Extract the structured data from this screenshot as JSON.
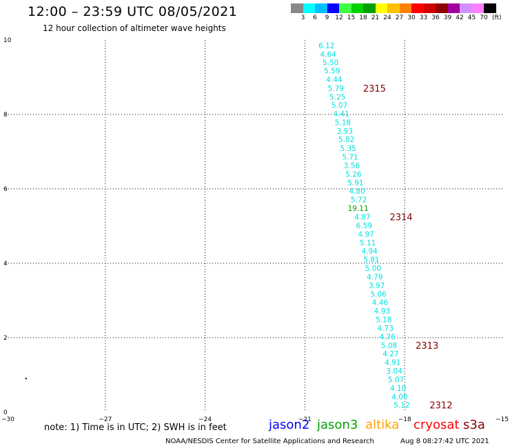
{
  "header": {
    "title": "12:00 – 23:59 UTC 08/05/2021",
    "subtitle": "12 hour collection of altimeter wave heights"
  },
  "color_scale": {
    "colors": [
      "#888888",
      "#00ffff",
      "#00bfff",
      "#0000ff",
      "#40ff40",
      "#00d000",
      "#00a000",
      "#ffff00",
      "#ffc000",
      "#ff8000",
      "#ff0000",
      "#d00000",
      "#900000",
      "#a000a0",
      "#d090ff",
      "#ff80ff",
      "#000000"
    ],
    "labels": [
      "3",
      "6",
      "9",
      "12",
      "15",
      "18",
      "21",
      "24",
      "27",
      "30",
      "33",
      "36",
      "39",
      "42",
      "45",
      "70"
    ],
    "unit": "(ft)"
  },
  "map": {
    "x_axis": {
      "min": -30,
      "max": -15,
      "ticks": [
        "−30",
        "−27",
        "−24",
        "−21",
        "−18",
        "−15"
      ],
      "tick_values": [
        -30,
        -27,
        -24,
        -21,
        -18,
        -15
      ]
    },
    "y_axis": {
      "min": 0,
      "max": 10,
      "ticks": [
        "0",
        "2",
        "4",
        "6",
        "8",
        "10"
      ],
      "tick_values": [
        0,
        2,
        4,
        6,
        8,
        10
      ]
    },
    "grid": "dotted",
    "swh_points": [
      {
        "lon": -20.35,
        "lat": 9.85,
        "swh": "6.12",
        "color": "#00e0e0"
      },
      {
        "lon": -20.3,
        "lat": 9.62,
        "swh": "4.64",
        "color": "#00e0e0"
      },
      {
        "lon": -20.23,
        "lat": 9.4,
        "swh": "5.50",
        "color": "#00e0e0"
      },
      {
        "lon": -20.18,
        "lat": 9.18,
        "swh": "5.59",
        "color": "#00e0e0"
      },
      {
        "lon": -20.12,
        "lat": 8.94,
        "swh": "4.44",
        "color": "#00e0e0"
      },
      {
        "lon": -20.07,
        "lat": 8.7,
        "swh": "5.79",
        "color": "#00e0e0"
      },
      {
        "lon": -20.02,
        "lat": 8.47,
        "swh": "5.25",
        "color": "#00e0e0"
      },
      {
        "lon": -19.96,
        "lat": 8.25,
        "swh": "5.07",
        "color": "#00e0e0"
      },
      {
        "lon": -19.91,
        "lat": 8.02,
        "swh": "4.41",
        "color": "#00e0e0"
      },
      {
        "lon": -19.86,
        "lat": 7.79,
        "swh": "5.18",
        "color": "#00e0e0"
      },
      {
        "lon": -19.8,
        "lat": 7.56,
        "swh": "3.93",
        "color": "#00e0e0"
      },
      {
        "lon": -19.75,
        "lat": 7.33,
        "swh": "5.82",
        "color": "#00e0e0"
      },
      {
        "lon": -19.7,
        "lat": 7.09,
        "swh": "5.35",
        "color": "#00e0e0"
      },
      {
        "lon": -19.64,
        "lat": 6.86,
        "swh": "5.71",
        "color": "#00e0e0"
      },
      {
        "lon": -19.59,
        "lat": 6.63,
        "swh": "3.56",
        "color": "#00e0e0"
      },
      {
        "lon": -19.54,
        "lat": 6.4,
        "swh": "5.26",
        "color": "#00e0e0"
      },
      {
        "lon": -19.48,
        "lat": 6.17,
        "swh": "5.91",
        "color": "#00e0e0"
      },
      {
        "lon": -19.43,
        "lat": 5.94,
        "swh": "4.80",
        "color": "#00e0e0"
      },
      {
        "lon": -19.38,
        "lat": 5.71,
        "swh": "5.72",
        "color": "#00e0e0"
      },
      {
        "lon": -19.4,
        "lat": 5.48,
        "swh": "19.11",
        "color": "#00a000"
      },
      {
        "lon": -19.27,
        "lat": 5.25,
        "swh": "4.87",
        "color": "#00e0e0"
      },
      {
        "lon": -19.22,
        "lat": 5.02,
        "swh": "6.59",
        "color": "#00e0e0"
      },
      {
        "lon": -19.16,
        "lat": 4.79,
        "swh": "4.97",
        "color": "#00e0e0"
      },
      {
        "lon": -19.11,
        "lat": 4.56,
        "swh": "5.11",
        "color": "#00e0e0"
      },
      {
        "lon": -19.06,
        "lat": 4.33,
        "swh": "4.94",
        "color": "#00e0e0"
      },
      {
        "lon": -19.0,
        "lat": 4.1,
        "swh": "5.81",
        "color": "#00e0e0"
      },
      {
        "lon": -18.95,
        "lat": 3.87,
        "swh": "5.00",
        "color": "#00e0e0"
      },
      {
        "lon": -18.9,
        "lat": 3.64,
        "swh": "4.79",
        "color": "#00e0e0"
      },
      {
        "lon": -18.84,
        "lat": 3.41,
        "swh": "3.97",
        "color": "#00e0e0"
      },
      {
        "lon": -18.79,
        "lat": 3.18,
        "swh": "5.06",
        "color": "#00e0e0"
      },
      {
        "lon": -18.74,
        "lat": 2.95,
        "swh": "4.46",
        "color": "#00e0e0"
      },
      {
        "lon": -18.68,
        "lat": 2.72,
        "swh": "4.93",
        "color": "#00e0e0"
      },
      {
        "lon": -18.63,
        "lat": 2.49,
        "swh": "5.18",
        "color": "#00e0e0"
      },
      {
        "lon": -18.58,
        "lat": 2.26,
        "swh": "4.73",
        "color": "#00e0e0"
      },
      {
        "lon": -18.52,
        "lat": 2.03,
        "swh": "4.76",
        "color": "#00e0e0"
      },
      {
        "lon": -18.47,
        "lat": 1.8,
        "swh": "5.08",
        "color": "#00e0e0"
      },
      {
        "lon": -18.42,
        "lat": 1.57,
        "swh": "4.27",
        "color": "#00e0e0"
      },
      {
        "lon": -18.36,
        "lat": 1.34,
        "swh": "4.91",
        "color": "#00e0e0"
      },
      {
        "lon": -18.31,
        "lat": 1.11,
        "swh": "3.04",
        "color": "#00e0e0"
      },
      {
        "lon": -18.26,
        "lat": 0.88,
        "swh": "5.07",
        "color": "#00e0e0"
      },
      {
        "lon": -18.2,
        "lat": 0.65,
        "swh": "4.10",
        "color": "#00e0e0"
      },
      {
        "lon": -18.15,
        "lat": 0.42,
        "swh": "4.00",
        "color": "#00e0e0"
      },
      {
        "lon": -18.09,
        "lat": 0.19,
        "swh": "5.12",
        "color": "#00e0e0"
      }
    ],
    "pass_labels": [
      {
        "text": "2315",
        "lon": -19.25,
        "lat": 8.7
      },
      {
        "text": "2314",
        "lon": -18.45,
        "lat": 5.25
      },
      {
        "text": "2313",
        "lon": -17.67,
        "lat": 1.8
      },
      {
        "text": "2312",
        "lon": -17.25,
        "lat": 0.19
      }
    ],
    "pass_label_color": "#800000",
    "stray_dot": {
      "lon": -29.4,
      "lat": 0.92
    }
  },
  "footer": {
    "note": "note:  1) Time is in UTC;  2) SWH is in feet",
    "satellites": [
      {
        "name": "jason2",
        "color": "#0000ff"
      },
      {
        "name": "jason3",
        "color": "#00a000"
      },
      {
        "name": "altika",
        "color": "#ffa000"
      },
      {
        "name": "cryosat",
        "color": "#ff0000"
      },
      {
        "name": "s3a",
        "color": "#800000"
      }
    ],
    "credit": "NOAA/NESDIS Center for Satellite Applications and Research",
    "timestamp": "Aug  8 08:27:42 UTC 2021"
  }
}
